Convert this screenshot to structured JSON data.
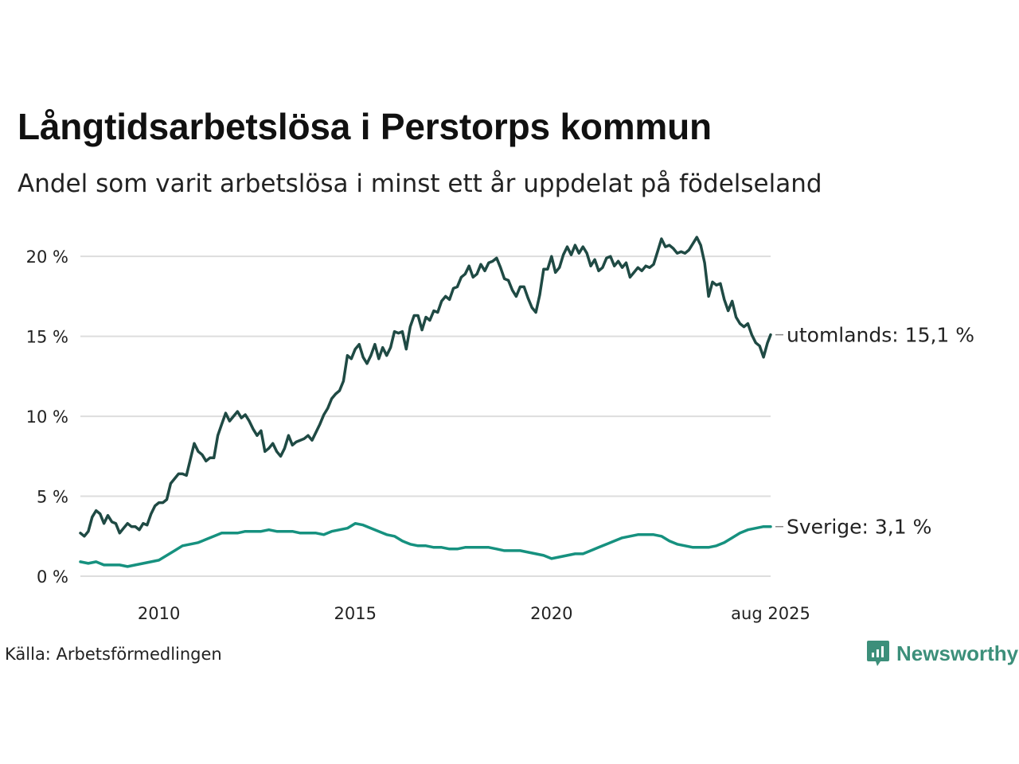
{
  "title": "Långtidsarbetslösa i Perstorps kommun",
  "subtitle": "Andel som varit arbetslösa i minst ett år uppdelat på födelseland",
  "source": "Källa: Arbetsförmedlingen",
  "brand": "Newsworthy",
  "colors": {
    "utomlands": "#1f4a44",
    "sverige": "#16917f",
    "grid": "#dddddd",
    "brand": "#3c8f7a"
  },
  "chart_data": {
    "type": "line",
    "title": "Långtidsarbetslösa i Perstorps kommun",
    "subtitle": "Andel som varit arbetslösa i minst ett år uppdelat på födelseland",
    "xlim": [
      2008.0,
      2025.58
    ],
    "ylim": [
      0,
      22
    ],
    "y_ticks": [
      0,
      5,
      10,
      15,
      20
    ],
    "y_tick_labels": [
      "0 %",
      "5 %",
      "10 %",
      "15 %",
      "20 %"
    ],
    "x_ticks": [
      2010,
      2015,
      2020,
      2025.58
    ],
    "x_tick_labels": [
      "2010",
      "2015",
      "2020",
      "aug 2025"
    ],
    "grid": "horizontal",
    "legend": "end-of-line labels",
    "series": [
      {
        "name": "utomlands",
        "end_label": "utomlands: 15,1 %",
        "points": [
          [
            2008.0,
            2.7
          ],
          [
            2008.1,
            2.5
          ],
          [
            2008.2,
            2.8
          ],
          [
            2008.3,
            3.7
          ],
          [
            2008.4,
            4.1
          ],
          [
            2008.5,
            3.9
          ],
          [
            2008.6,
            3.3
          ],
          [
            2008.7,
            3.8
          ],
          [
            2008.8,
            3.4
          ],
          [
            2008.9,
            3.3
          ],
          [
            2009.0,
            2.7
          ],
          [
            2009.1,
            3.0
          ],
          [
            2009.2,
            3.3
          ],
          [
            2009.3,
            3.1
          ],
          [
            2009.4,
            3.1
          ],
          [
            2009.5,
            2.9
          ],
          [
            2009.6,
            3.3
          ],
          [
            2009.7,
            3.2
          ],
          [
            2009.8,
            3.9
          ],
          [
            2009.9,
            4.4
          ],
          [
            2010.0,
            4.6
          ],
          [
            2010.1,
            4.6
          ],
          [
            2010.2,
            4.8
          ],
          [
            2010.3,
            5.8
          ],
          [
            2010.4,
            6.1
          ],
          [
            2010.5,
            6.4
          ],
          [
            2010.6,
            6.4
          ],
          [
            2010.7,
            6.3
          ],
          [
            2010.8,
            7.3
          ],
          [
            2010.9,
            8.3
          ],
          [
            2011.0,
            7.8
          ],
          [
            2011.1,
            7.6
          ],
          [
            2011.2,
            7.2
          ],
          [
            2011.3,
            7.4
          ],
          [
            2011.4,
            7.4
          ],
          [
            2011.5,
            8.8
          ],
          [
            2011.6,
            9.5
          ],
          [
            2011.7,
            10.2
          ],
          [
            2011.8,
            9.7
          ],
          [
            2011.9,
            10.0
          ],
          [
            2012.0,
            10.3
          ],
          [
            2012.1,
            9.9
          ],
          [
            2012.2,
            10.1
          ],
          [
            2012.3,
            9.7
          ],
          [
            2012.4,
            9.2
          ],
          [
            2012.5,
            8.8
          ],
          [
            2012.6,
            9.1
          ],
          [
            2012.7,
            7.8
          ],
          [
            2012.8,
            8.0
          ],
          [
            2012.9,
            8.3
          ],
          [
            2013.0,
            7.8
          ],
          [
            2013.1,
            7.5
          ],
          [
            2013.2,
            8.0
          ],
          [
            2013.3,
            8.8
          ],
          [
            2013.4,
            8.2
          ],
          [
            2013.5,
            8.4
          ],
          [
            2013.6,
            8.5
          ],
          [
            2013.7,
            8.6
          ],
          [
            2013.8,
            8.8
          ],
          [
            2013.9,
            8.5
          ],
          [
            2014.0,
            9.0
          ],
          [
            2014.1,
            9.5
          ],
          [
            2014.2,
            10.1
          ],
          [
            2014.3,
            10.5
          ],
          [
            2014.4,
            11.1
          ],
          [
            2014.5,
            11.4
          ],
          [
            2014.6,
            11.6
          ],
          [
            2014.7,
            12.2
          ],
          [
            2014.8,
            13.8
          ],
          [
            2014.9,
            13.6
          ],
          [
            2015.0,
            14.2
          ],
          [
            2015.1,
            14.5
          ],
          [
            2015.2,
            13.7
          ],
          [
            2015.3,
            13.3
          ],
          [
            2015.4,
            13.8
          ],
          [
            2015.5,
            14.5
          ],
          [
            2015.6,
            13.6
          ],
          [
            2015.7,
            14.3
          ],
          [
            2015.8,
            13.8
          ],
          [
            2015.9,
            14.3
          ],
          [
            2016.0,
            15.3
          ],
          [
            2016.1,
            15.2
          ],
          [
            2016.2,
            15.3
          ],
          [
            2016.3,
            14.2
          ],
          [
            2016.4,
            15.6
          ],
          [
            2016.5,
            16.3
          ],
          [
            2016.6,
            16.3
          ],
          [
            2016.7,
            15.4
          ],
          [
            2016.8,
            16.2
          ],
          [
            2016.9,
            16.0
          ],
          [
            2017.0,
            16.6
          ],
          [
            2017.1,
            16.5
          ],
          [
            2017.2,
            17.2
          ],
          [
            2017.3,
            17.5
          ],
          [
            2017.4,
            17.3
          ],
          [
            2017.5,
            18.0
          ],
          [
            2017.6,
            18.1
          ],
          [
            2017.7,
            18.7
          ],
          [
            2017.8,
            18.9
          ],
          [
            2017.9,
            19.4
          ],
          [
            2018.0,
            18.7
          ],
          [
            2018.1,
            18.9
          ],
          [
            2018.2,
            19.5
          ],
          [
            2018.3,
            19.1
          ],
          [
            2018.4,
            19.6
          ],
          [
            2018.5,
            19.7
          ],
          [
            2018.6,
            19.9
          ],
          [
            2018.7,
            19.3
          ],
          [
            2018.8,
            18.6
          ],
          [
            2018.9,
            18.5
          ],
          [
            2019.0,
            17.9
          ],
          [
            2019.1,
            17.5
          ],
          [
            2019.2,
            18.1
          ],
          [
            2019.3,
            18.1
          ],
          [
            2019.4,
            17.4
          ],
          [
            2019.5,
            16.8
          ],
          [
            2019.6,
            16.5
          ],
          [
            2019.7,
            17.6
          ],
          [
            2019.8,
            19.2
          ],
          [
            2019.9,
            19.2
          ],
          [
            2020.0,
            20.0
          ],
          [
            2020.1,
            19.0
          ],
          [
            2020.2,
            19.3
          ],
          [
            2020.3,
            20.1
          ],
          [
            2020.4,
            20.6
          ],
          [
            2020.5,
            20.1
          ],
          [
            2020.6,
            20.7
          ],
          [
            2020.7,
            20.2
          ],
          [
            2020.8,
            20.6
          ],
          [
            2020.9,
            20.2
          ],
          [
            2021.0,
            19.4
          ],
          [
            2021.1,
            19.8
          ],
          [
            2021.2,
            19.1
          ],
          [
            2021.3,
            19.3
          ],
          [
            2021.4,
            19.9
          ],
          [
            2021.5,
            20.0
          ],
          [
            2021.6,
            19.4
          ],
          [
            2021.7,
            19.7
          ],
          [
            2021.8,
            19.3
          ],
          [
            2021.9,
            19.6
          ],
          [
            2022.0,
            18.7
          ],
          [
            2022.1,
            19.0
          ],
          [
            2022.2,
            19.3
          ],
          [
            2022.3,
            19.1
          ],
          [
            2022.4,
            19.4
          ],
          [
            2022.5,
            19.3
          ],
          [
            2022.6,
            19.5
          ],
          [
            2022.7,
            20.3
          ],
          [
            2022.8,
            21.1
          ],
          [
            2022.9,
            20.6
          ],
          [
            2023.0,
            20.7
          ],
          [
            2023.1,
            20.5
          ],
          [
            2023.2,
            20.2
          ],
          [
            2023.3,
            20.3
          ],
          [
            2023.4,
            20.2
          ],
          [
            2023.5,
            20.4
          ],
          [
            2023.6,
            20.8
          ],
          [
            2023.7,
            21.2
          ],
          [
            2023.8,
            20.7
          ],
          [
            2023.9,
            19.6
          ],
          [
            2024.0,
            17.5
          ],
          [
            2024.1,
            18.4
          ],
          [
            2024.2,
            18.2
          ],
          [
            2024.3,
            18.3
          ],
          [
            2024.4,
            17.3
          ],
          [
            2024.5,
            16.6
          ],
          [
            2024.6,
            17.2
          ],
          [
            2024.7,
            16.2
          ],
          [
            2024.8,
            15.8
          ],
          [
            2024.9,
            15.6
          ],
          [
            2025.0,
            15.8
          ],
          [
            2025.1,
            15.1
          ],
          [
            2025.2,
            14.6
          ],
          [
            2025.3,
            14.4
          ],
          [
            2025.4,
            13.7
          ],
          [
            2025.5,
            14.6
          ],
          [
            2025.58,
            15.1
          ]
        ]
      },
      {
        "name": "Sverige",
        "end_label": "Sverige:  3,1 %",
        "points": [
          [
            2008.0,
            0.9
          ],
          [
            2008.2,
            0.8
          ],
          [
            2008.4,
            0.9
          ],
          [
            2008.6,
            0.7
          ],
          [
            2008.8,
            0.7
          ],
          [
            2009.0,
            0.7
          ],
          [
            2009.2,
            0.6
          ],
          [
            2009.4,
            0.7
          ],
          [
            2009.6,
            0.8
          ],
          [
            2009.8,
            0.9
          ],
          [
            2010.0,
            1.0
          ],
          [
            2010.2,
            1.3
          ],
          [
            2010.4,
            1.6
          ],
          [
            2010.6,
            1.9
          ],
          [
            2010.8,
            2.0
          ],
          [
            2011.0,
            2.1
          ],
          [
            2011.2,
            2.3
          ],
          [
            2011.4,
            2.5
          ],
          [
            2011.6,
            2.7
          ],
          [
            2011.8,
            2.7
          ],
          [
            2012.0,
            2.7
          ],
          [
            2012.2,
            2.8
          ],
          [
            2012.4,
            2.8
          ],
          [
            2012.6,
            2.8
          ],
          [
            2012.8,
            2.9
          ],
          [
            2013.0,
            2.8
          ],
          [
            2013.2,
            2.8
          ],
          [
            2013.4,
            2.8
          ],
          [
            2013.6,
            2.7
          ],
          [
            2013.8,
            2.7
          ],
          [
            2014.0,
            2.7
          ],
          [
            2014.2,
            2.6
          ],
          [
            2014.4,
            2.8
          ],
          [
            2014.6,
            2.9
          ],
          [
            2014.8,
            3.0
          ],
          [
            2015.0,
            3.3
          ],
          [
            2015.2,
            3.2
          ],
          [
            2015.4,
            3.0
          ],
          [
            2015.6,
            2.8
          ],
          [
            2015.8,
            2.6
          ],
          [
            2016.0,
            2.5
          ],
          [
            2016.2,
            2.2
          ],
          [
            2016.4,
            2.0
          ],
          [
            2016.6,
            1.9
          ],
          [
            2016.8,
            1.9
          ],
          [
            2017.0,
            1.8
          ],
          [
            2017.2,
            1.8
          ],
          [
            2017.4,
            1.7
          ],
          [
            2017.6,
            1.7
          ],
          [
            2017.8,
            1.8
          ],
          [
            2018.0,
            1.8
          ],
          [
            2018.2,
            1.8
          ],
          [
            2018.4,
            1.8
          ],
          [
            2018.6,
            1.7
          ],
          [
            2018.8,
            1.6
          ],
          [
            2019.0,
            1.6
          ],
          [
            2019.2,
            1.6
          ],
          [
            2019.4,
            1.5
          ],
          [
            2019.6,
            1.4
          ],
          [
            2019.8,
            1.3
          ],
          [
            2020.0,
            1.1
          ],
          [
            2020.2,
            1.2
          ],
          [
            2020.4,
            1.3
          ],
          [
            2020.6,
            1.4
          ],
          [
            2020.8,
            1.4
          ],
          [
            2021.0,
            1.6
          ],
          [
            2021.2,
            1.8
          ],
          [
            2021.4,
            2.0
          ],
          [
            2021.6,
            2.2
          ],
          [
            2021.8,
            2.4
          ],
          [
            2022.0,
            2.5
          ],
          [
            2022.2,
            2.6
          ],
          [
            2022.4,
            2.6
          ],
          [
            2022.6,
            2.6
          ],
          [
            2022.8,
            2.5
          ],
          [
            2023.0,
            2.2
          ],
          [
            2023.2,
            2.0
          ],
          [
            2023.4,
            1.9
          ],
          [
            2023.6,
            1.8
          ],
          [
            2023.8,
            1.8
          ],
          [
            2024.0,
            1.8
          ],
          [
            2024.2,
            1.9
          ],
          [
            2024.4,
            2.1
          ],
          [
            2024.6,
            2.4
          ],
          [
            2024.8,
            2.7
          ],
          [
            2025.0,
            2.9
          ],
          [
            2025.2,
            3.0
          ],
          [
            2025.4,
            3.1
          ],
          [
            2025.58,
            3.1
          ]
        ]
      }
    ]
  }
}
